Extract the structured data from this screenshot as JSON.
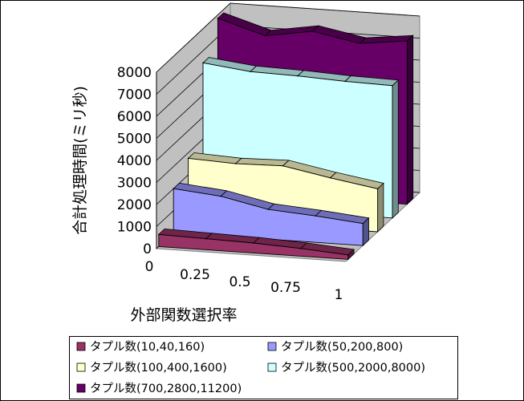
{
  "chart_data": {
    "type": "area",
    "title": "",
    "xlabel": "外部関数選択率",
    "ylabel": "合計処理時間(ミリ秒)",
    "zlabel": "",
    "x": [
      0,
      0.25,
      0.5,
      0.75,
      1
    ],
    "x_tick_labels": [
      "0",
      "0.25",
      "0.5",
      "0.75",
      "1"
    ],
    "ylim": [
      0,
      8000
    ],
    "y_tick_labels": [
      "0",
      "1000",
      "2000",
      "3000",
      "4000",
      "5000",
      "6000",
      "7000",
      "8000"
    ],
    "grid": true,
    "legend_position": "bottom",
    "series": [
      {
        "name": "タプル数(10,40,160)",
        "values": [
          550,
          500,
          450,
          350,
          200
        ],
        "color": "#993366"
      },
      {
        "name": "タプル数(50,200,800)",
        "values": [
          2000,
          1800,
          1350,
          1200,
          1000
        ],
        "color": "#9999ff"
      },
      {
        "name": "タプル数(100,400,1600)",
        "values": [
          2750,
          2650,
          2700,
          2300,
          1950
        ],
        "color": "#ffffcc"
      },
      {
        "name": "タプル数(500,2000,8000)",
        "values": [
          6450,
          6200,
          6150,
          6050,
          6000
        ],
        "color": "#ccffff"
      },
      {
        "name": "タプル数(700,2800,11200)",
        "values": [
          7850,
          7200,
          7550,
          7150,
          7400
        ],
        "color": "#660066"
      }
    ]
  }
}
